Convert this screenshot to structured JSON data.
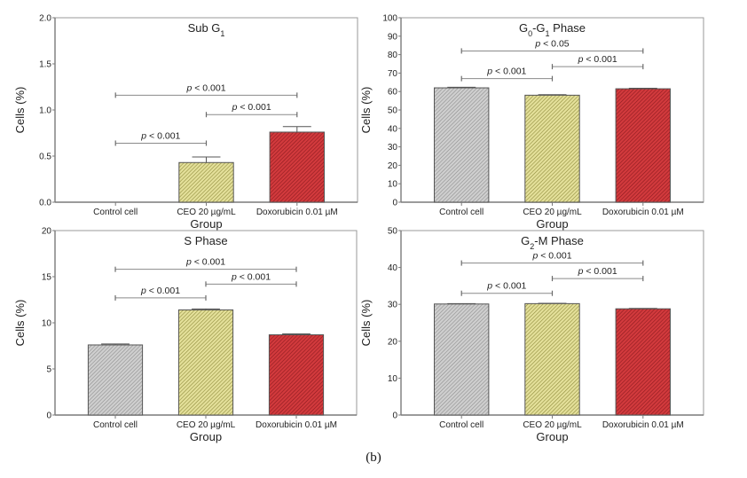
{
  "figure_caption": "(b)",
  "chart_data": [
    {
      "type": "bar",
      "title": "Sub G",
      "title_subscript": "1",
      "title_parts": [
        {
          "text": "Sub G",
          "sub": false
        },
        {
          "text": "1",
          "sub": true
        }
      ],
      "xlabel": "Group",
      "ylabel": "Cells (%)",
      "ylim": [
        0,
        2.0
      ],
      "yticks": [
        0.0,
        0.5,
        1.0,
        1.5,
        2.0
      ],
      "ytick_labels": [
        "0.0",
        "0.5",
        "1.0",
        "1.5",
        "2.0"
      ],
      "categories": [
        "Control cell",
        "CEO 20 µg/mL",
        "Doxorubicin 0.01 µM"
      ],
      "values": [
        0,
        0.43,
        0.76
      ],
      "error_upper": [
        0,
        0.49,
        0.82
      ],
      "bar_colors": [
        "#c4c4c4",
        "#d8d47e",
        "#c62a2f"
      ],
      "grid": false,
      "significance": [
        {
          "from": 0,
          "to": 2,
          "y": 1.16,
          "label": "p < 0.001"
        },
        {
          "from": 1,
          "to": 2,
          "y": 0.95,
          "label": "p < 0.001"
        },
        {
          "from": 0,
          "to": 1,
          "y": 0.64,
          "label": "p < 0.001"
        }
      ]
    },
    {
      "type": "bar",
      "title": "G0-G1 Phase",
      "title_parts": [
        {
          "text": "G",
          "sub": false
        },
        {
          "text": "0",
          "sub": true
        },
        {
          "text": "-G",
          "sub": false
        },
        {
          "text": "1",
          "sub": true
        },
        {
          "text": " Phase",
          "sub": false
        }
      ],
      "xlabel": "Group",
      "ylabel": "Cells (%)",
      "ylim": [
        0,
        100
      ],
      "yticks": [
        0,
        10,
        20,
        30,
        40,
        50,
        60,
        70,
        80,
        90,
        100
      ],
      "ytick_labels": [
        "0",
        "10",
        "20",
        "30",
        "40",
        "50",
        "60",
        "70",
        "80",
        "90",
        "100"
      ],
      "categories": [
        "Control cell",
        "CEO 20 µg/mL",
        "Doxorubicin 0.01 µM"
      ],
      "values": [
        62.0,
        58.0,
        61.5
      ],
      "error_upper": [
        62.3,
        58.3,
        61.8
      ],
      "bar_colors": [
        "#c4c4c4",
        "#d8d47e",
        "#c62a2f"
      ],
      "grid": false,
      "significance": [
        {
          "from": 0,
          "to": 2,
          "y": 82,
          "label": "p < 0.05"
        },
        {
          "from": 1,
          "to": 2,
          "y": 73.5,
          "label": "p < 0.001"
        },
        {
          "from": 0,
          "to": 1,
          "y": 67,
          "label": "p < 0.001"
        }
      ]
    },
    {
      "type": "bar",
      "title": "S Phase",
      "title_parts": [
        {
          "text": "S Phase",
          "sub": false
        }
      ],
      "xlabel": "Group",
      "ylabel": "Cells (%)",
      "ylim": [
        0,
        20
      ],
      "yticks": [
        0,
        5,
        10,
        15,
        20
      ],
      "ytick_labels": [
        "0",
        "5",
        "10",
        "15",
        "20"
      ],
      "categories": [
        "Control cell",
        "CEO 20 µg/mL",
        "Doxorubicin 0.01 µM"
      ],
      "values": [
        7.6,
        11.4,
        8.7
      ],
      "error_upper": [
        7.7,
        11.5,
        8.8
      ],
      "bar_colors": [
        "#c4c4c4",
        "#d8d47e",
        "#c62a2f"
      ],
      "grid": false,
      "significance": [
        {
          "from": 0,
          "to": 2,
          "y": 15.8,
          "label": "p < 0.001"
        },
        {
          "from": 1,
          "to": 2,
          "y": 14.2,
          "label": "p < 0.001"
        },
        {
          "from": 0,
          "to": 1,
          "y": 12.7,
          "label": "p < 0.001"
        }
      ]
    },
    {
      "type": "bar",
      "title": "G2-M Phase",
      "title_parts": [
        {
          "text": "G",
          "sub": false
        },
        {
          "text": "2",
          "sub": true
        },
        {
          "text": "-M Phase",
          "sub": false
        }
      ],
      "xlabel": "Group",
      "ylabel": "Cells (%)",
      "ylim": [
        0,
        50
      ],
      "yticks": [
        0,
        10,
        20,
        30,
        40,
        50
      ],
      "ytick_labels": [
        "0",
        "10",
        "20",
        "30",
        "40",
        "50"
      ],
      "categories": [
        "Control cell",
        "CEO 20 µg/mL",
        "Doxorubicin 0.01 µM"
      ],
      "values": [
        30.1,
        30.2,
        28.8
      ],
      "error_upper": [
        30.2,
        30.3,
        28.9
      ],
      "bar_colors": [
        "#c4c4c4",
        "#d8d47e",
        "#c62a2f"
      ],
      "grid": false,
      "significance": [
        {
          "from": 0,
          "to": 2,
          "y": 41.2,
          "label": "p < 0.001"
        },
        {
          "from": 1,
          "to": 2,
          "y": 37,
          "label": "p < 0.001"
        },
        {
          "from": 0,
          "to": 1,
          "y": 33,
          "label": "p < 0.001"
        }
      ]
    }
  ]
}
